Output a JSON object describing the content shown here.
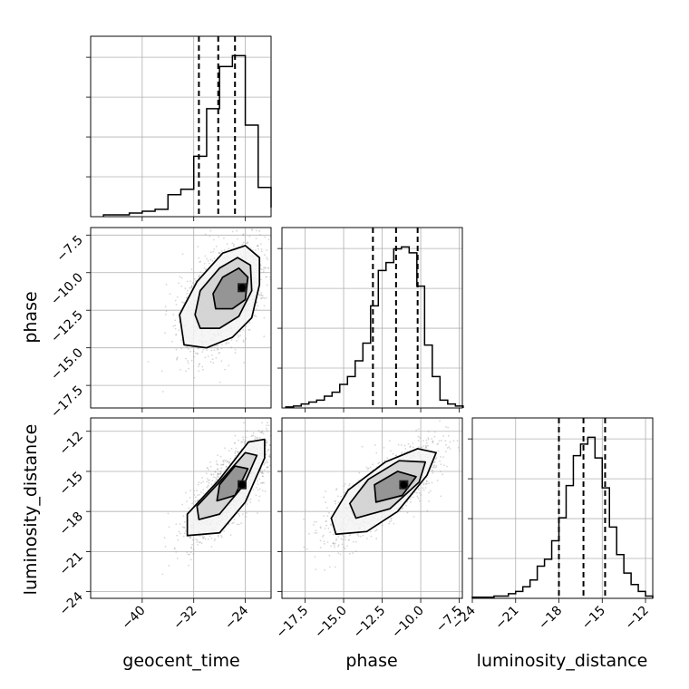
{
  "chart_data": {
    "type": "corner",
    "parameters": [
      "geocent_time",
      "phase",
      "luminosity_distance"
    ],
    "colors": {
      "hist": "#000000",
      "grid": "#b0b0b0",
      "scatter": "#8c8c8c",
      "quantile": "#000000"
    },
    "grid": true,
    "diagonal": [
      {
        "parameter": "geocent_time",
        "xlim": [
          -48,
          -20
        ],
        "xticks": [
          -40,
          -32,
          -24
        ],
        "xtick_labels": [
          "−40",
          "−32",
          "−24"
        ],
        "quantiles": [
          -31.2,
          -28.2,
          -25.6
        ],
        "bins": [
          -46,
          -44,
          -42,
          -40,
          -38,
          -36,
          -34,
          -32,
          -30,
          -28,
          -26,
          -24,
          -22,
          -20
        ],
        "counts": [
          1,
          1,
          2,
          3,
          4,
          12,
          15,
          33,
          59,
          82,
          88,
          50,
          16,
          5
        ]
      },
      {
        "parameter": "phase",
        "xlim": [
          -19.0,
          -7.3
        ],
        "xticks": [
          -17.5,
          -15.0,
          -12.5,
          -10.0,
          -7.5
        ],
        "xtick_labels": [
          "−17.5",
          "−15.0",
          "−12.5",
          "−10.0",
          "−7.5"
        ],
        "quantiles": [
          -13.1,
          -11.6,
          -10.2
        ],
        "bins": [
          -18.75,
          -18.25,
          -17.75,
          -17.25,
          -16.75,
          -16.25,
          -15.75,
          -15.25,
          -14.75,
          -14.25,
          -13.75,
          -13.25,
          -12.75,
          -12.25,
          -11.75,
          -11.25,
          -10.75,
          -10.25,
          -9.75,
          -9.25,
          -8.75,
          -8.25,
          -7.75,
          -7.25
        ],
        "counts": [
          0.5,
          1,
          2,
          3,
          4,
          6,
          8,
          12,
          16,
          24,
          33,
          52,
          70,
          74,
          81,
          82,
          79,
          62,
          32,
          16,
          4,
          2,
          1
        ]
      },
      {
        "parameter": "luminosity_distance",
        "xlim": [
          -24.0,
          -11.5
        ],
        "xticks": [
          -24,
          -21,
          -18,
          -15,
          -12
        ],
        "xtick_labels": [
          "−24",
          "−21",
          "−18",
          "−15",
          "−12"
        ],
        "quantiles": [
          -18.0,
          -16.3,
          -14.8
        ],
        "bins": [
          -24.0,
          -23.5,
          -23.0,
          -22.5,
          -22.0,
          -21.5,
          -21.0,
          -20.5,
          -20.0,
          -19.5,
          -19.0,
          -18.5,
          -18.0,
          -17.5,
          -17.0,
          -16.5,
          -16.0,
          -15.5,
          -15.0,
          -14.5,
          -14.0,
          -13.5,
          -13.0,
          -12.5,
          -12.0,
          -11.5
        ],
        "counts": [
          0.5,
          0.5,
          0.5,
          1,
          1,
          2,
          3,
          5,
          8,
          14,
          17,
          25,
          35,
          49,
          62,
          67,
          70,
          61,
          48,
          31,
          19,
          11,
          6,
          3,
          1
        ]
      }
    ],
    "off_diagonal": [
      {
        "x": "geocent_time",
        "y": "phase",
        "ylim": [
          -19.0,
          -7.0
        ],
        "yticks": [
          -7.5,
          -10.0,
          -12.5,
          -15.0,
          -17.5
        ],
        "ytick_labels": [
          "−7.5",
          "−10.0",
          "−12.5",
          "−15.0",
          "−17.5"
        ],
        "center": [
          -24.5,
          -11.0
        ],
        "contours": [
          [
            [
              -33.5,
              -14.8
            ],
            [
              -30.0,
              -15.0
            ],
            [
              -26.0,
              -14.3
            ],
            [
              -23.0,
              -13.0
            ],
            [
              -21.8,
              -10.8
            ],
            [
              -21.8,
              -9.0
            ],
            [
              -24.0,
              -8.2
            ],
            [
              -27.5,
              -8.7
            ],
            [
              -31.5,
              -10.6
            ],
            [
              -34.2,
              -12.8
            ]
          ],
          [
            [
              -31.0,
              -13.7
            ],
            [
              -28.0,
              -13.7
            ],
            [
              -25.0,
              -12.9
            ],
            [
              -23.0,
              -11.2
            ],
            [
              -23.2,
              -9.5
            ],
            [
              -25.2,
              -9.0
            ],
            [
              -28.0,
              -9.7
            ],
            [
              -31.0,
              -11.2
            ],
            [
              -31.8,
              -12.8
            ]
          ],
          [
            [
              -28.6,
              -12.4
            ],
            [
              -26.0,
              -12.4
            ],
            [
              -24.0,
              -11.8
            ],
            [
              -23.6,
              -10.3
            ],
            [
              -25.0,
              -9.7
            ],
            [
              -27.5,
              -10.3
            ],
            [
              -29.0,
              -11.4
            ]
          ]
        ]
      },
      {
        "x": "geocent_time",
        "y": "luminosity_distance",
        "ylim": [
          -24.5,
          -11.0
        ],
        "yticks": [
          -12,
          -15,
          -18,
          -21,
          -24
        ],
        "ytick_labels": [
          "−12",
          "−15",
          "−18",
          "−21",
          "−24"
        ],
        "center": [
          -24.5,
          -16.0
        ],
        "contours": [
          [
            [
              -33.0,
              -19.8
            ],
            [
              -28.0,
              -19.6
            ],
            [
              -24.0,
              -17.3
            ],
            [
              -21.0,
              -14.0
            ],
            [
              -21.0,
              -12.6
            ],
            [
              -23.5,
              -12.8
            ],
            [
              -28.0,
              -15.6
            ],
            [
              -33.0,
              -18.2
            ]
          ],
          [
            [
              -31.2,
              -18.6
            ],
            [
              -28.0,
              -18.2
            ],
            [
              -24.2,
              -16.0
            ],
            [
              -22.2,
              -13.8
            ],
            [
              -24.0,
              -13.6
            ],
            [
              -28.0,
              -15.8
            ],
            [
              -31.5,
              -17.6
            ]
          ],
          [
            [
              -28.4,
              -17.2
            ],
            [
              -25.6,
              -16.8
            ],
            [
              -23.6,
              -14.8
            ],
            [
              -25.6,
              -14.6
            ],
            [
              -28.0,
              -16.0
            ]
          ]
        ]
      },
      {
        "x": "phase",
        "y": "luminosity_distance",
        "ylim": [
          -24.5,
          -11.0
        ],
        "yticks": [
          -12,
          -15,
          -18,
          -21,
          -24
        ],
        "ytick_labels": [
          "−12",
          "−15",
          "−18",
          "−21",
          "−24"
        ],
        "center": [
          -11.1,
          -16.0
        ],
        "contours": [
          [
            [
              -15.5,
              -19.7
            ],
            [
              -13.5,
              -19.5
            ],
            [
              -11.5,
              -18.0
            ],
            [
              -9.6,
              -15.3
            ],
            [
              -9.0,
              -13.6
            ],
            [
              -10.2,
              -13.3
            ],
            [
              -12.3,
              -14.3
            ],
            [
              -14.7,
              -16.4
            ],
            [
              -15.8,
              -18.5
            ]
          ],
          [
            [
              -14.2,
              -18.5
            ],
            [
              -12.0,
              -17.8
            ],
            [
              -10.1,
              -15.8
            ],
            [
              -9.7,
              -14.3
            ],
            [
              -11.4,
              -14.2
            ],
            [
              -13.4,
              -15.6
            ],
            [
              -14.6,
              -17.4
            ]
          ],
          [
            [
              -12.9,
              -17.3
            ],
            [
              -11.2,
              -16.8
            ],
            [
              -10.3,
              -15.4
            ],
            [
              -11.5,
              -15.0
            ],
            [
              -13.0,
              -16.0
            ]
          ]
        ]
      }
    ]
  },
  "axes_labels": {
    "x": [
      "geocent_time",
      "phase",
      "luminosity_distance"
    ],
    "y": [
      "phase",
      "luminosity_distance"
    ]
  }
}
